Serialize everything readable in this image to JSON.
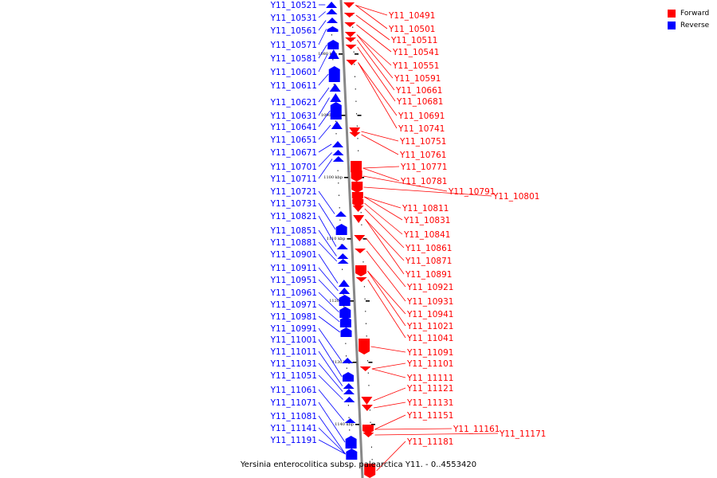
{
  "legend": {
    "forward_label": "Forward",
    "reverse_label": "Reverse"
  },
  "colors": {
    "forward": "#ff0000",
    "reverse": "#0000ff",
    "axis": "#888888"
  },
  "caption": "Yersinia enterocolitica subsp. palearctica Y11. - 0..4553420",
  "ticks": [
    "1080 kbp",
    "1090 kbp",
    "1100 kbp",
    "1110 kbp",
    "1120 kbp",
    "1130 kbp",
    "1140 kbp"
  ],
  "reverse_genes": [
    "Y11_10521",
    "Y11_10531",
    "Y11_10561",
    "Y11_10571",
    "Y11_10581",
    "Y11_10601",
    "Y11_10611",
    "Y11_10621",
    "Y11_10631",
    "Y11_10641",
    "Y11_10651",
    "Y11_10671",
    "Y11_10701",
    "Y11_10711",
    "Y11_10721",
    "Y11_10731",
    "Y11_10821",
    "Y11_10851",
    "Y11_10881",
    "Y11_10901",
    "Y11_10911",
    "Y11_10951",
    "Y11_10961",
    "Y11_10971",
    "Y11_10981",
    "Y11_10991",
    "Y11_11001",
    "Y11_11011",
    "Y11_11031",
    "Y11_11051",
    "Y11_11061",
    "Y11_11071",
    "Y11_11081",
    "Y11_11141",
    "Y11_11191"
  ],
  "forward_genes": [
    "Y11_10491",
    "Y11_10501",
    "Y11_10511",
    "Y11_10541",
    "Y11_10551",
    "Y11_10591",
    "Y11_10661",
    "Y11_10681",
    "Y11_10691",
    "Y11_10741",
    "Y11_10751",
    "Y11_10761",
    "Y11_10771",
    "Y11_10781",
    "Y11_10791",
    "Y11_10801",
    "Y11_10811",
    "Y11_10831",
    "Y11_10841",
    "Y11_10861",
    "Y11_10871",
    "Y11_10891",
    "Y11_10921",
    "Y11_10931",
    "Y11_10941",
    "Y11_11021",
    "Y11_11041",
    "Y11_11091",
    "Y11_11101",
    "Y11_11111",
    "Y11_11121",
    "Y11_11131",
    "Y11_11151",
    "Y11_11161",
    "Y11_11171",
    "Y11_11181"
  ]
}
